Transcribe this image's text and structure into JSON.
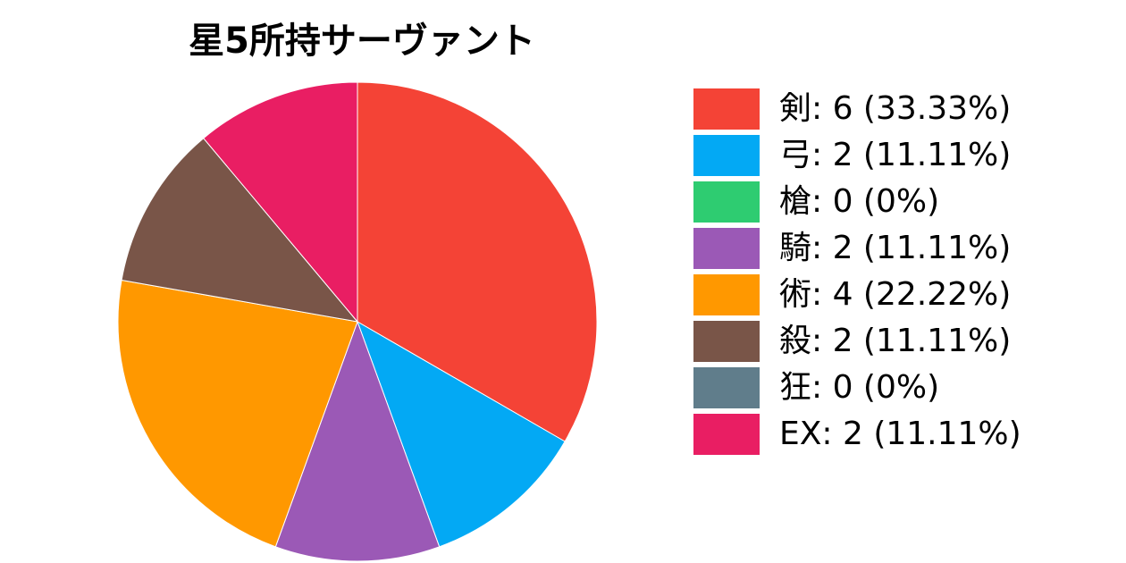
{
  "chart_data": {
    "type": "pie",
    "title": "星5所持サーヴァント",
    "legend_position": "right",
    "start_angle_deg": 0,
    "direction": "clockwise",
    "slices": [
      {
        "label": "剣",
        "value": 6,
        "percent": "33.33%",
        "color": "#f44336"
      },
      {
        "label": "弓",
        "value": 2,
        "percent": "11.11%",
        "color": "#03a9f4"
      },
      {
        "label": "槍",
        "value": 0,
        "percent": "0%",
        "color": "#2ecc71"
      },
      {
        "label": "騎",
        "value": 2,
        "percent": "11.11%",
        "color": "#9b59b6"
      },
      {
        "label": "術",
        "value": 4,
        "percent": "22.22%",
        "color": "#ff9800"
      },
      {
        "label": "殺",
        "value": 2,
        "percent": "11.11%",
        "color": "#795548"
      },
      {
        "label": "狂",
        "value": 0,
        "percent": "0%",
        "color": "#607d8b"
      },
      {
        "label": "EX",
        "value": 2,
        "percent": "11.11%",
        "color": "#e91e63"
      }
    ]
  }
}
